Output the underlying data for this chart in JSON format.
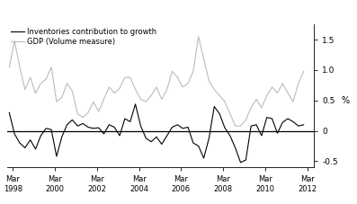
{
  "ylabel_right": "%",
  "legend": [
    {
      "label": "Inventories contribution to growth",
      "color": "#000000",
      "lw": 0.8
    },
    {
      "label": "GDP (Volume measure)",
      "color": "#bbbbbb",
      "lw": 0.8
    }
  ],
  "xlim_start": 1997.9,
  "xlim_end": 2012.5,
  "ylim": [
    -0.6,
    1.75
  ],
  "yticks": [
    -0.5,
    0.0,
    0.5,
    1.0,
    1.5
  ],
  "ytick_labels": [
    "-0.5",
    "0",
    "0.5",
    "1.0",
    "1.5"
  ],
  "xtick_labels": [
    "Mar\n1998",
    "Mar\n2000",
    "Mar\n2002",
    "Mar\n2004",
    "Mar\n2006",
    "Mar\n2008",
    "Mar\n2010",
    "Mar\n2012"
  ],
  "xtick_positions": [
    1998.17,
    2000.17,
    2002.17,
    2004.17,
    2006.17,
    2008.17,
    2010.17,
    2012.17
  ],
  "inventories": {
    "x": [
      1998.0,
      1998.25,
      1998.5,
      1998.75,
      1999.0,
      1999.25,
      1999.5,
      1999.75,
      2000.0,
      2000.25,
      2000.5,
      2000.75,
      2001.0,
      2001.25,
      2001.5,
      2001.75,
      2002.0,
      2002.25,
      2002.5,
      2002.75,
      2003.0,
      2003.25,
      2003.5,
      2003.75,
      2004.0,
      2004.25,
      2004.5,
      2004.75,
      2005.0,
      2005.25,
      2005.5,
      2005.75,
      2006.0,
      2006.25,
      2006.5,
      2006.75,
      2007.0,
      2007.25,
      2007.5,
      2007.75,
      2008.0,
      2008.25,
      2008.5,
      2008.75,
      2009.0,
      2009.25,
      2009.5,
      2009.75,
      2010.0,
      2010.25,
      2010.5,
      2010.75,
      2011.0,
      2011.25,
      2011.5,
      2011.75,
      2012.0
    ],
    "y": [
      0.3,
      -0.05,
      -0.2,
      -0.28,
      -0.15,
      -0.3,
      -0.08,
      0.04,
      0.02,
      -0.42,
      -0.1,
      0.1,
      0.18,
      0.08,
      0.12,
      0.06,
      0.04,
      0.05,
      -0.05,
      0.1,
      0.06,
      -0.08,
      0.2,
      0.15,
      0.44,
      0.08,
      -0.12,
      -0.18,
      -0.1,
      -0.22,
      -0.08,
      0.06,
      0.1,
      0.04,
      0.06,
      -0.2,
      -0.25,
      -0.45,
      -0.12,
      0.4,
      0.28,
      0.05,
      -0.08,
      -0.28,
      -0.52,
      -0.48,
      0.08,
      0.1,
      -0.08,
      0.22,
      0.2,
      -0.04,
      0.14,
      0.2,
      0.15,
      0.08,
      0.1
    ]
  },
  "gdp": {
    "x": [
      1998.0,
      1998.25,
      1998.5,
      1998.75,
      1999.0,
      1999.25,
      1999.5,
      1999.75,
      2000.0,
      2000.25,
      2000.5,
      2000.75,
      2001.0,
      2001.25,
      2001.5,
      2001.75,
      2002.0,
      2002.25,
      2002.5,
      2002.75,
      2003.0,
      2003.25,
      2003.5,
      2003.75,
      2004.0,
      2004.25,
      2004.5,
      2004.75,
      2005.0,
      2005.25,
      2005.5,
      2005.75,
      2006.0,
      2006.25,
      2006.5,
      2006.75,
      2007.0,
      2007.25,
      2007.5,
      2007.75,
      2008.0,
      2008.25,
      2008.5,
      2008.75,
      2009.0,
      2009.25,
      2009.5,
      2009.75,
      2010.0,
      2010.25,
      2010.5,
      2010.75,
      2011.0,
      2011.25,
      2011.5,
      2011.75,
      2012.0
    ],
    "y": [
      1.05,
      1.48,
      1.05,
      0.68,
      0.88,
      0.62,
      0.78,
      0.85,
      1.05,
      0.48,
      0.55,
      0.78,
      0.65,
      0.28,
      0.22,
      0.3,
      0.48,
      0.32,
      0.52,
      0.72,
      0.62,
      0.7,
      0.88,
      0.88,
      0.68,
      0.52,
      0.48,
      0.58,
      0.72,
      0.52,
      0.68,
      0.98,
      0.88,
      0.72,
      0.78,
      0.98,
      1.55,
      1.18,
      0.82,
      0.68,
      0.58,
      0.48,
      0.28,
      0.08,
      0.08,
      0.18,
      0.38,
      0.52,
      0.38,
      0.58,
      0.72,
      0.62,
      0.78,
      0.62,
      0.48,
      0.78,
      0.98
    ]
  },
  "background_color": "#ffffff"
}
